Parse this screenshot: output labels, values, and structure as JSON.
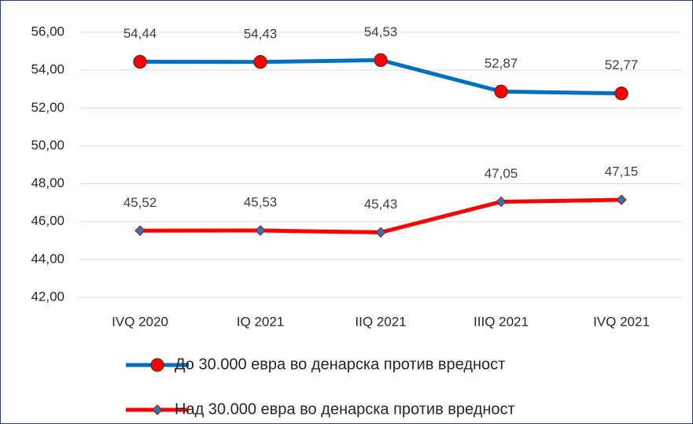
{
  "chart_data": {
    "type": "line",
    "categories": [
      "IVQ 2020",
      "IQ 2021",
      "IIQ 2021",
      "IIIQ 2021",
      "IVQ 2021"
    ],
    "series": [
      {
        "name": "До 30.000 евра во денарска против вредност",
        "color": "#0070c0",
        "marker": "circle",
        "marker_color": "#ff0000",
        "values": [
          54.44,
          54.43,
          54.53,
          52.87,
          52.77
        ],
        "value_labels": [
          "54,44",
          "54,43",
          "54,53",
          "52,87",
          "52,77"
        ]
      },
      {
        "name": "Над 30.000 евра во денарска против вредност",
        "color": "#ff0000",
        "marker": "diamond",
        "marker_color": "#2e75b6",
        "values": [
          45.52,
          45.53,
          45.43,
          47.05,
          47.15
        ],
        "value_labels": [
          "45,52",
          "45,53",
          "45,43",
          "47,05",
          "47,15"
        ]
      }
    ],
    "ylim": [
      42,
      56
    ],
    "yticks": [
      {
        "value": 42,
        "label": "42,00"
      },
      {
        "value": 44,
        "label": "44,00"
      },
      {
        "value": 46,
        "label": "46,00"
      },
      {
        "value": 48,
        "label": "48,00"
      },
      {
        "value": 50,
        "label": "50,00"
      },
      {
        "value": 52,
        "label": "52,00"
      },
      {
        "value": 54,
        "label": "54,00"
      },
      {
        "value": 56,
        "label": "56,00"
      }
    ],
    "grid": true,
    "legend": "bottom"
  }
}
